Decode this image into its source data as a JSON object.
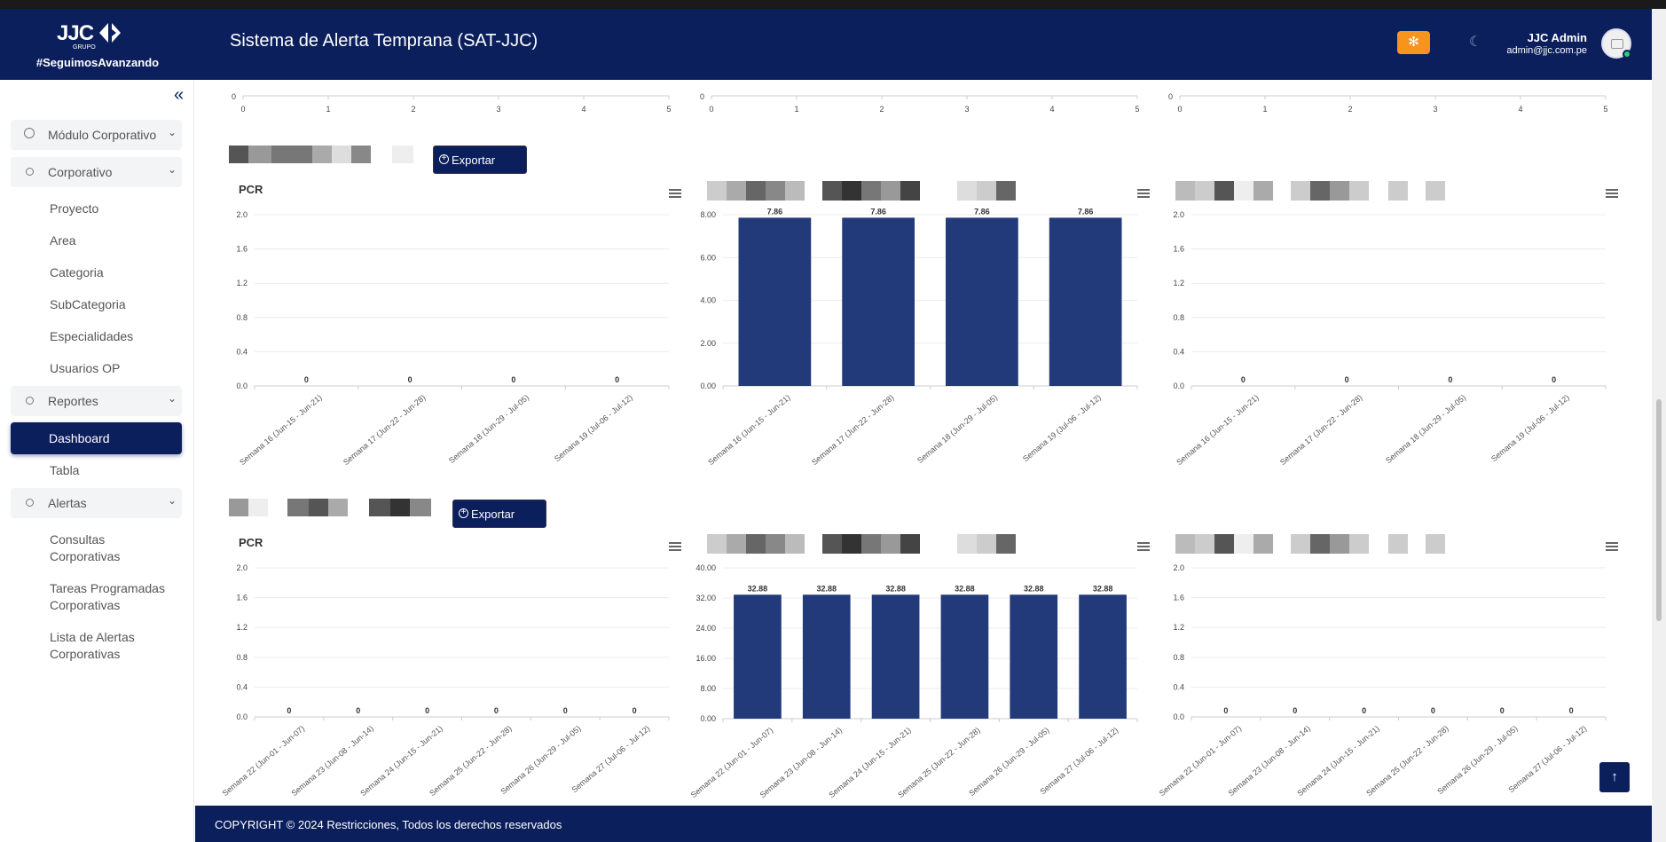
{
  "header": {
    "logo_mark": "JJC",
    "logo_sub": "GRUPO",
    "slogan": "#SeguimosAvanzando",
    "title": "Sistema de Alerta Temprana (SAT-JJC)",
    "settings_icon": "gear-icon",
    "theme_icon": "moon-icon",
    "user_name": "JJC Admin",
    "user_email": "admin@jjc.com.pe"
  },
  "sidebar": {
    "collapse_icon": "double-chevron-left-icon",
    "module_label": "Módulo Corporativo",
    "corporativo_label": "Corporativo",
    "corporativo_items": [
      "Proyecto",
      "Area",
      "Categoria",
      "SubCategoria",
      "Especialidades",
      "Usuarios OP"
    ],
    "reportes_label": "Reportes",
    "reportes_items": [
      "Dashboard",
      "Tabla"
    ],
    "alertas_label": "Alertas",
    "alertas_items": [
      "Consultas Corporativas",
      "Tareas Programadas Corporativas",
      "Lista de Alertas Corporativas"
    ],
    "active_item": "Dashboard"
  },
  "sections": [
    {
      "export_label": "Exportar"
    },
    {
      "export_label": "Exportar"
    }
  ],
  "chart_data": [
    {
      "type": "line",
      "xlabels": [
        "0",
        "1",
        "2",
        "3",
        "4",
        "5"
      ],
      "ylabels": [
        "0"
      ],
      "partial": true
    },
    {
      "type": "line",
      "xlabels": [
        "0",
        "1",
        "2",
        "3",
        "4",
        "5"
      ],
      "ylabels": [
        "0"
      ],
      "partial": true
    },
    {
      "type": "line",
      "xlabels": [
        "0",
        "1",
        "2",
        "3",
        "4",
        "5"
      ],
      "ylabels": [
        "0"
      ],
      "partial": true
    },
    {
      "type": "bar",
      "title": "PCR",
      "categories": [
        "Semana 16 (Jun-15 - Jun-21)",
        "Semana 17 (Jun-22 - Jun-28)",
        "Semana 18 (Jun-29 - Jul-05)",
        "Semana 19 (Jul-06 - Jul-12)"
      ],
      "values": [
        0,
        0,
        0,
        0
      ],
      "ylim": [
        0,
        2
      ],
      "yticks": [
        "0.0",
        "0.4",
        "0.8",
        "1.2",
        "1.6",
        "2.0"
      ]
    },
    {
      "type": "bar",
      "title": "",
      "categories": [
        "Semana 16 (Jun-15 - Jun-21)",
        "Semana 17 (Jun-22 - Jun-28)",
        "Semana 18 (Jun-29 - Jul-05)",
        "Semana 19 (Jul-06 - Jul-12)"
      ],
      "values": [
        7.86,
        7.86,
        7.86,
        7.86
      ],
      "ylim": [
        0,
        8
      ],
      "yticks": [
        "0.00",
        "2.00",
        "4.00",
        "6.00",
        "8.00"
      ],
      "color": "#233a7a"
    },
    {
      "type": "bar",
      "title": "",
      "categories": [
        "Semana 16 (Jun-15 - Jun-21)",
        "Semana 17 (Jun-22 - Jun-28)",
        "Semana 18 (Jun-29 - Jul-05)",
        "Semana 19 (Jul-06 - Jul-12)"
      ],
      "values": [
        0,
        0,
        0,
        0
      ],
      "ylim": [
        0,
        2
      ],
      "yticks": [
        "0.0",
        "0.4",
        "0.8",
        "1.2",
        "1.6",
        "2.0"
      ]
    },
    {
      "type": "bar",
      "title": "PCR",
      "categories": [
        "Semana 22 (Jun-01 - Jun-07)",
        "Semana 23 (Jun-08 - Jun-14)",
        "Semana 24 (Jun-15 - Jun-21)",
        "Semana 25 (Jun-22 - Jun-28)",
        "Semana 26 (Jun-29 - Jul-05)",
        "Semana 27 (Jul-06 - Jul-12)"
      ],
      "values": [
        0,
        0,
        0,
        0,
        0,
        0
      ],
      "ylim": [
        0,
        2
      ],
      "yticks": [
        "0.0",
        "0.4",
        "0.8",
        "1.2",
        "1.6",
        "2.0"
      ]
    },
    {
      "type": "bar",
      "title": "",
      "categories": [
        "Semana 22 (Jun-01 - Jun-07)",
        "Semana 23 (Jun-08 - Jun-14)",
        "Semana 24 (Jun-15 - Jun-21)",
        "Semana 25 (Jun-22 - Jun-28)",
        "Semana 26 (Jun-29 - Jul-05)",
        "Semana 27 (Jul-06 - Jul-12)"
      ],
      "values": [
        32.88,
        32.88,
        32.88,
        32.88,
        32.88,
        32.88
      ],
      "ylim": [
        0,
        40
      ],
      "yticks": [
        "0.00",
        "8.00",
        "16.00",
        "24.00",
        "32.00",
        "40.00"
      ],
      "color": "#233a7a"
    },
    {
      "type": "bar",
      "title": "",
      "categories": [
        "Semana 22 (Jun-01 - Jun-07)",
        "Semana 23 (Jun-08 - Jun-14)",
        "Semana 24 (Jun-15 - Jun-21)",
        "Semana 25 (Jun-22 - Jun-28)",
        "Semana 26 (Jun-29 - Jul-05)",
        "Semana 27 (Jul-06 - Jul-12)"
      ],
      "values": [
        0,
        0,
        0,
        0,
        0,
        0
      ],
      "ylim": [
        0,
        2
      ],
      "yticks": [
        "0.0",
        "0.4",
        "0.8",
        "1.2",
        "1.6",
        "2.0"
      ]
    }
  ],
  "footer": {
    "copyright": "COPYRIGHT © 2024  Restricciones, Todos los derechos reservados"
  }
}
